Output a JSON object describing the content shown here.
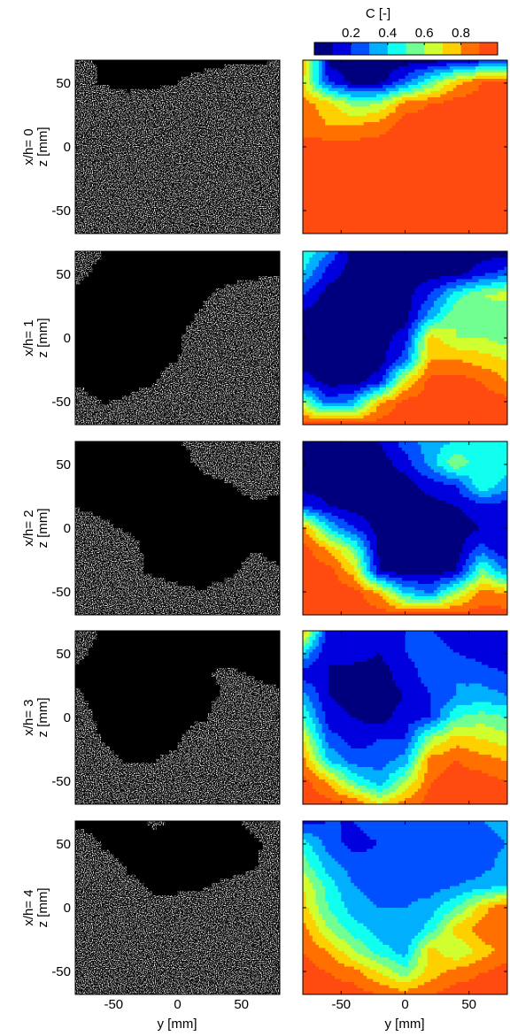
{
  "figure": {
    "colorbar": {
      "label": "C [-]",
      "ticks": [
        "0.2",
        "0.4",
        "0.6",
        "0.8"
      ],
      "tick_values": [
        0.2,
        0.4,
        0.6,
        0.8
      ],
      "range": [
        0,
        1
      ],
      "bands": 10,
      "colors": [
        "#00007f",
        "#0000df",
        "#0050ff",
        "#00b0ff",
        "#10ffee",
        "#70ff90",
        "#d0ff30",
        "#ffd000",
        "#ff7000",
        "#ff4a10"
      ]
    },
    "y_axis_label": "z [mm]",
    "x_axis_label": "y [mm]",
    "x_ticks": [
      "-50",
      "0",
      "50"
    ],
    "x_tick_values": [
      -50,
      0,
      50
    ],
    "x_range": [
      -80,
      80
    ],
    "z_ticks": [
      "50",
      "0",
      "-50"
    ],
    "z_tick_values": [
      50,
      0,
      -50
    ],
    "z_range": [
      -68,
      68
    ],
    "rows": [
      {
        "label": "x/h= 0"
      },
      {
        "label": "x/h= 1"
      },
      {
        "label": "x/h= 2"
      },
      {
        "label": "x/h= 3"
      },
      {
        "label": "x/h= 4"
      }
    ]
  },
  "chart_data": {
    "type": "heatmap",
    "title": "",
    "xlabel": "y [mm]",
    "ylabel": "z [mm]",
    "colorbar_label": "C [-]",
    "x": [
      -80,
      -60,
      -40,
      -20,
      0,
      20,
      40,
      60,
      80
    ],
    "z": [
      68,
      51,
      34,
      17,
      0,
      -17,
      -34,
      -51,
      -68
    ],
    "xlim": [
      -80,
      80
    ],
    "zlim": [
      -68,
      68
    ],
    "clim": [
      0,
      1
    ],
    "series": [
      {
        "name": "x/h= 0",
        "values": [
          [
            0.85,
            0.05,
            0.05,
            0.05,
            0.05,
            0.05,
            0.1,
            0.15,
            0.25
          ],
          [
            0.7,
            0.2,
            0.05,
            0.05,
            0.25,
            0.5,
            0.75,
            0.9,
            0.9
          ],
          [
            0.85,
            0.75,
            0.55,
            0.6,
            0.85,
            0.9,
            0.95,
            0.95,
            0.95
          ],
          [
            0.85,
            0.8,
            0.8,
            0.85,
            0.95,
            0.95,
            0.95,
            0.95,
            0.95
          ],
          [
            0.95,
            0.95,
            0.95,
            0.95,
            0.95,
            0.95,
            0.95,
            0.95,
            0.95
          ],
          [
            0.95,
            0.95,
            0.95,
            0.95,
            0.95,
            0.95,
            0.95,
            0.95,
            0.95
          ],
          [
            0.95,
            0.95,
            0.95,
            0.95,
            0.95,
            0.95,
            0.95,
            0.95,
            0.95
          ],
          [
            0.95,
            0.95,
            0.95,
            0.95,
            0.95,
            0.95,
            0.95,
            0.95,
            0.95
          ],
          [
            0.95,
            0.95,
            0.95,
            0.95,
            0.95,
            0.95,
            0.95,
            0.95,
            0.95
          ]
        ]
      },
      {
        "name": "x/h= 1",
        "values": [
          [
            0.5,
            0.3,
            0.05,
            0.05,
            0.05,
            0.05,
            0.05,
            0.05,
            0.05
          ],
          [
            0.4,
            0.15,
            0.05,
            0.05,
            0.05,
            0.05,
            0.05,
            0.15,
            0.25
          ],
          [
            0.2,
            0.05,
            0.05,
            0.05,
            0.05,
            0.2,
            0.45,
            0.6,
            0.65
          ],
          [
            0.05,
            0.05,
            0.05,
            0.05,
            0.05,
            0.35,
            0.6,
            0.55,
            0.5
          ],
          [
            0.05,
            0.05,
            0.05,
            0.05,
            0.15,
            0.75,
            0.6,
            0.6,
            0.55
          ],
          [
            0.05,
            0.05,
            0.05,
            0.05,
            0.25,
            0.8,
            0.8,
            0.75,
            0.7
          ],
          [
            0.15,
            0.05,
            0.05,
            0.15,
            0.7,
            0.95,
            0.95,
            0.9,
            0.8
          ],
          [
            0.6,
            0.25,
            0.35,
            0.8,
            0.95,
            0.95,
            0.95,
            0.95,
            0.95
          ],
          [
            0.95,
            0.95,
            0.95,
            0.95,
            0.95,
            0.95,
            0.95,
            0.95,
            0.95
          ]
        ]
      },
      {
        "name": "x/h= 2",
        "values": [
          [
            0.05,
            0.05,
            0.05,
            0.1,
            0.25,
            0.35,
            0.4,
            0.5,
            0.4
          ],
          [
            0.05,
            0.05,
            0.05,
            0.05,
            0.15,
            0.35,
            0.6,
            0.4,
            0.45
          ],
          [
            0.05,
            0.05,
            0.05,
            0.05,
            0.05,
            0.15,
            0.2,
            0.5,
            0.35
          ],
          [
            0.2,
            0.1,
            0.05,
            0.05,
            0.05,
            0.05,
            0.1,
            0.15,
            0.15
          ],
          [
            0.85,
            0.4,
            0.2,
            0.05,
            0.05,
            0.05,
            0.05,
            0.1,
            0.15
          ],
          [
            0.95,
            0.8,
            0.55,
            0.05,
            0.05,
            0.05,
            0.05,
            0.25,
            0.1
          ],
          [
            0.95,
            0.95,
            0.75,
            0.1,
            0.05,
            0.05,
            0.1,
            0.55,
            0.3
          ],
          [
            0.95,
            0.95,
            0.95,
            0.8,
            0.4,
            0.3,
            0.6,
            0.85,
            0.8
          ],
          [
            0.95,
            0.95,
            0.95,
            0.95,
            0.95,
            0.95,
            0.95,
            0.95,
            0.95
          ]
        ]
      },
      {
        "name": "x/h= 3",
        "values": [
          [
            0.8,
            0.15,
            0.1,
            0.15,
            0.2,
            0.2,
            0.15,
            0.15,
            0.1
          ],
          [
            0.4,
            0.1,
            0.15,
            0.1,
            0.2,
            0.25,
            0.2,
            0.15,
            0.1
          ],
          [
            0.15,
            0.1,
            0.05,
            0.05,
            0.15,
            0.25,
            0.3,
            0.25,
            0.2
          ],
          [
            0.35,
            0.1,
            0.05,
            0.05,
            0.1,
            0.2,
            0.3,
            0.35,
            0.3
          ],
          [
            0.5,
            0.15,
            0.1,
            0.05,
            0.15,
            0.2,
            0.5,
            0.55,
            0.5
          ],
          [
            0.7,
            0.25,
            0.15,
            0.2,
            0.2,
            0.6,
            0.75,
            0.7,
            0.65
          ],
          [
            0.85,
            0.4,
            0.25,
            0.25,
            0.35,
            0.85,
            0.9,
            0.85,
            0.8
          ],
          [
            0.95,
            0.8,
            0.5,
            0.35,
            0.6,
            0.9,
            0.95,
            0.95,
            0.9
          ],
          [
            0.95,
            0.95,
            0.9,
            0.7,
            0.85,
            0.95,
            0.95,
            0.95,
            0.95
          ]
        ]
      },
      {
        "name": "x/h= 4",
        "values": [
          [
            0.15,
            0.2,
            0.2,
            0.3,
            0.25,
            0.2,
            0.25,
            0.3,
            0.35
          ],
          [
            0.45,
            0.25,
            0.15,
            0.2,
            0.25,
            0.2,
            0.2,
            0.25,
            0.3
          ],
          [
            0.55,
            0.35,
            0.25,
            0.25,
            0.25,
            0.25,
            0.2,
            0.25,
            0.35
          ],
          [
            0.7,
            0.45,
            0.3,
            0.25,
            0.25,
            0.25,
            0.3,
            0.35,
            0.4
          ],
          [
            0.75,
            0.5,
            0.35,
            0.3,
            0.3,
            0.35,
            0.5,
            0.75,
            0.9
          ],
          [
            0.85,
            0.6,
            0.45,
            0.35,
            0.3,
            0.45,
            0.75,
            0.85,
            0.9
          ],
          [
            0.9,
            0.8,
            0.6,
            0.45,
            0.35,
            0.75,
            0.6,
            0.75,
            0.85
          ],
          [
            0.95,
            0.9,
            0.85,
            0.7,
            0.55,
            0.75,
            0.85,
            0.9,
            0.95
          ],
          [
            0.95,
            0.95,
            0.95,
            0.9,
            0.85,
            0.9,
            0.95,
            0.95,
            0.95
          ]
        ]
      }
    ]
  }
}
